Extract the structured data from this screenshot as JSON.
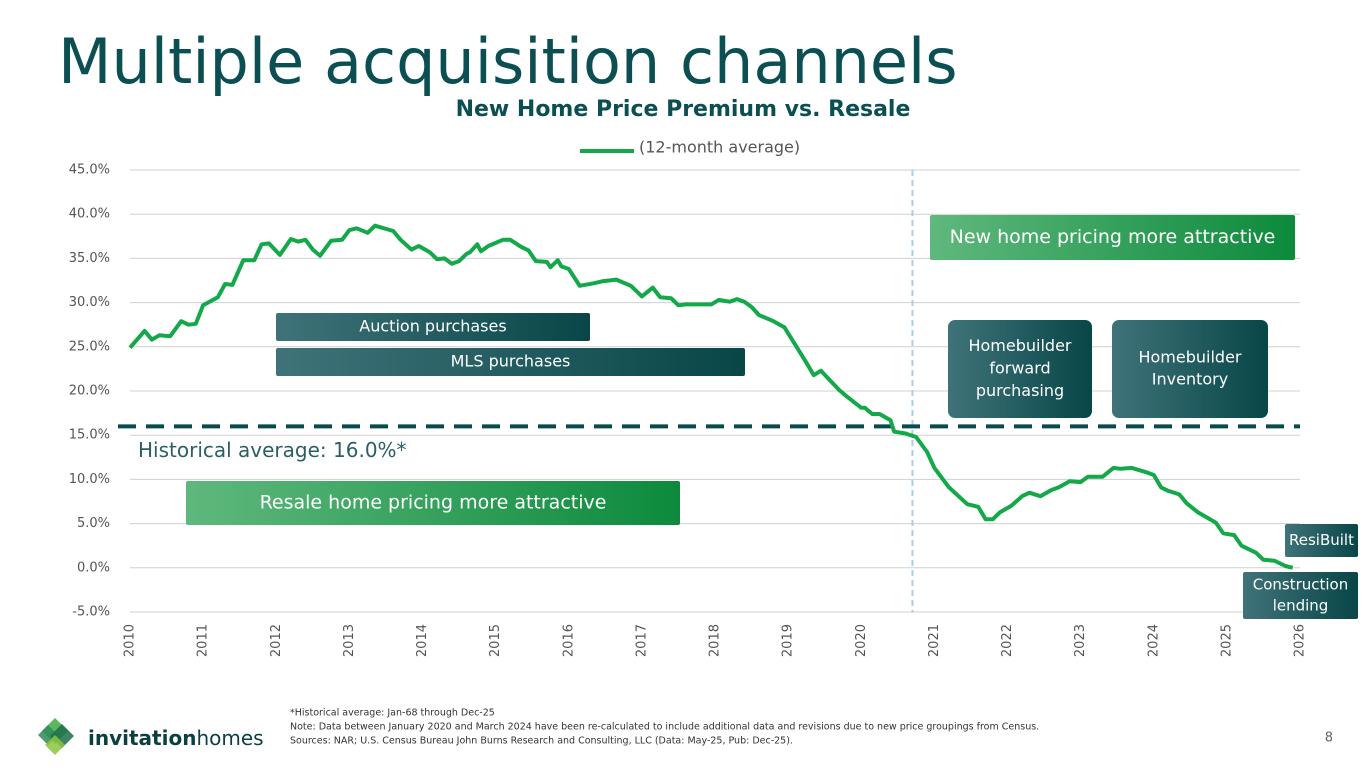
{
  "title": "Multiple acquisition channels",
  "chart_data": {
    "type": "line",
    "title": "New Home Price Premium vs. Resale",
    "x": [
      2010.0,
      2010.2,
      2010.3,
      2010.4,
      2010.55,
      2010.7,
      2010.8,
      2010.9,
      2011.0,
      2011.2,
      2011.3,
      2011.4,
      2011.55,
      2011.7,
      2011.8,
      2011.9,
      2012.05,
      2012.2,
      2012.3,
      2012.4,
      2012.5,
      2012.6,
      2012.75,
      2012.9,
      2013.0,
      2013.1,
      2013.25,
      2013.35,
      2013.6,
      2013.7,
      2013.85,
      2013.95,
      2014.1,
      2014.2,
      2014.3,
      2014.4,
      2014.5,
      2014.6,
      2014.65,
      2014.75,
      2014.8,
      2014.9,
      2015.1,
      2015.2,
      2015.35,
      2015.45,
      2015.55,
      2015.7,
      2015.75,
      2015.85,
      2015.9,
      2016.0,
      2016.15,
      2016.35,
      2016.45,
      2016.65,
      2016.85,
      2017.0,
      2017.15,
      2017.25,
      2017.4,
      2017.5,
      2017.6,
      2017.75,
      2017.95,
      2018.05,
      2018.2,
      2018.3,
      2018.4,
      2018.5,
      2018.6,
      2018.8,
      2018.95,
      2019.1,
      2019.25,
      2019.35,
      2019.45,
      2019.55,
      2019.7,
      2019.8,
      2020.0,
      2020.05,
      2020.15,
      2020.25,
      2020.4,
      2020.45,
      2020.6,
      2020.75,
      2020.9,
      2021.0,
      2021.2,
      2021.45,
      2021.6,
      2021.7,
      2021.8,
      2021.9,
      2022.05,
      2022.2,
      2022.3,
      2022.45,
      2022.6,
      2022.7,
      2022.85,
      2023.0,
      2023.1,
      2023.3,
      2023.45,
      2023.55,
      2023.7,
      2023.9,
      2024.0,
      2024.1,
      2024.2,
      2024.35,
      2024.45,
      2024.6,
      2024.85,
      2024.95,
      2025.1,
      2025.2,
      2025.4,
      2025.5,
      2025.65,
      2025.8,
      2025.9
    ],
    "series": [
      {
        "name": "(12-month average)",
        "color": "#13a84a",
        "values": [
          24.9,
          26.8,
          25.8,
          26.3,
          26.2,
          27.9,
          27.5,
          27.6,
          29.7,
          30.6,
          32.1,
          32.0,
          34.8,
          34.8,
          36.6,
          36.7,
          35.4,
          37.2,
          36.9,
          37.1,
          36.0,
          35.3,
          37.0,
          37.1,
          38.2,
          38.4,
          37.9,
          38.7,
          38.1,
          37.1,
          36.0,
          36.4,
          35.7,
          34.9,
          35.0,
          34.4,
          34.7,
          35.5,
          35.7,
          36.6,
          35.8,
          36.4,
          37.1,
          37.1,
          36.3,
          35.9,
          34.7,
          34.6,
          34.0,
          34.8,
          34.1,
          33.8,
          31.9,
          32.2,
          32.4,
          32.6,
          31.9,
          30.7,
          31.7,
          30.6,
          30.5,
          29.7,
          29.8,
          29.8,
          29.8,
          30.3,
          30.1,
          30.4,
          30.1,
          29.5,
          28.6,
          27.9,
          27.2,
          25.2,
          23.2,
          21.8,
          22.3,
          21.4,
          20.1,
          19.4,
          18.1,
          18.1,
          17.4,
          17.4,
          16.7,
          15.4,
          15.2,
          14.8,
          13.1,
          11.3,
          9.1,
          7.2,
          6.9,
          5.5,
          5.5,
          6.3,
          7.0,
          8.1,
          8.5,
          8.1,
          8.8,
          9.1,
          9.8,
          9.7,
          10.3,
          10.3,
          11.3,
          11.2,
          11.3,
          10.8,
          10.5,
          9.1,
          8.7,
          8.3,
          7.3,
          6.3,
          5.1,
          3.9,
          3.7,
          2.5,
          1.7,
          0.9,
          0.8,
          0.2,
          0.0
        ]
      }
    ],
    "xlim": [
      2010,
      2026
    ],
    "xticks": [
      2010,
      2011,
      2012,
      2013,
      2014,
      2015,
      2016,
      2017,
      2018,
      2019,
      2020,
      2021,
      2022,
      2023,
      2024,
      2025,
      2026
    ],
    "ylim": [
      -5,
      45
    ],
    "yticks": [
      {
        "value": -5,
        "label": "-5.0%"
      },
      {
        "value": 0,
        "label": "0.0%"
      },
      {
        "value": 5,
        "label": "5.0%"
      },
      {
        "value": 10,
        "label": "10.0%"
      },
      {
        "value": 15,
        "label": "15.0%"
      },
      {
        "value": 20,
        "label": "20.0%"
      },
      {
        "value": 25,
        "label": "25.0%"
      },
      {
        "value": 30,
        "label": "30.0%"
      },
      {
        "value": 35,
        "label": "35.0%"
      },
      {
        "value": 40,
        "label": "40.0%"
      },
      {
        "value": 45,
        "label": "45.0%"
      }
    ],
    "grid": true,
    "legend": "top",
    "reference_line": {
      "value": 16,
      "label": "Historical average: 16.0%*",
      "color": "#0b4a4c"
    },
    "divider_x": 2020.7,
    "annotations": [
      {
        "lines": [
          "Auction purchases"
        ]
      },
      {
        "lines": [
          "MLS purchases"
        ]
      },
      {
        "lines": [
          "Resale home pricing more attractive"
        ]
      },
      {
        "lines": [
          "New home pricing more attractive"
        ]
      },
      {
        "lines": [
          "Homebuilder",
          "forward",
          "purchasing"
        ]
      },
      {
        "lines": [
          "Homebuilder",
          "Inventory"
        ]
      },
      {
        "lines": [
          "ResiBuilt"
        ]
      },
      {
        "lines": [
          "Construction",
          "lending"
        ]
      }
    ]
  },
  "footnotes": [
    "*Historical average: Jan-68 through Dec-25",
    "Note: Data between January 2020 and March 2024 have been re-calculated to include additional data and revisions due to new price groupings from Census.",
    "Sources: NAR; U.S. Census Bureau John Burns Research and Consulting, LLC (Data: May-25, Pub: Dec-25)."
  ],
  "logo": {
    "first": "invitation",
    "second": "homes"
  },
  "page_number": "8"
}
